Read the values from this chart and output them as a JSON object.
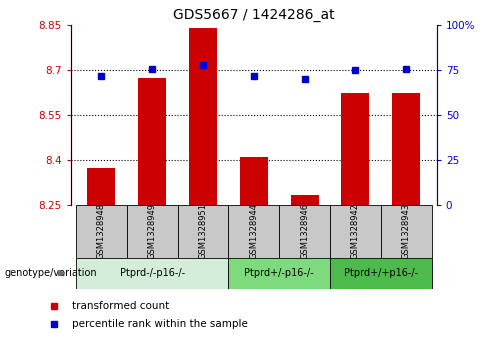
{
  "title": "GDS5667 / 1424286_at",
  "samples": [
    "GSM1328948",
    "GSM1328949",
    "GSM1328951",
    "GSM1328944",
    "GSM1328946",
    "GSM1328942",
    "GSM1328943"
  ],
  "bar_values": [
    8.375,
    8.675,
    8.84,
    8.41,
    8.285,
    8.625,
    8.625
  ],
  "percentile_values": [
    72,
    76,
    78,
    72,
    70,
    75,
    76
  ],
  "ylim_left": [
    8.25,
    8.85
  ],
  "ylim_right": [
    0,
    100
  ],
  "yticks_left": [
    8.25,
    8.4,
    8.55,
    8.7,
    8.85
  ],
  "yticks_right": [
    0,
    25,
    50,
    75,
    100
  ],
  "ytick_labels_left": [
    "8.25",
    "8.4",
    "8.55",
    "8.7",
    "8.85"
  ],
  "ytick_labels_right": [
    "0",
    "25",
    "50",
    "75",
    "100%"
  ],
  "hlines": [
    8.4,
    8.55,
    8.7
  ],
  "bar_color": "#cc0000",
  "percentile_color": "#0000cc",
  "bar_bottom": 8.25,
  "groups": [
    {
      "label": "Ptprd-/-p16-/-",
      "samples": [
        0,
        1,
        2
      ],
      "color": "#d4edda"
    },
    {
      "label": "Ptprd+/-p16-/-",
      "samples": [
        3,
        4
      ],
      "color": "#7ddb7d"
    },
    {
      "label": "Ptprd+/+p16-/-",
      "samples": [
        5,
        6
      ],
      "color": "#4cbb4c"
    }
  ],
  "legend_items": [
    {
      "label": "transformed count",
      "color": "#cc0000"
    },
    {
      "label": "percentile rank within the sample",
      "color": "#0000cc"
    }
  ],
  "xlabel_box_color": "#c8c8c8",
  "bar_width": 0.55
}
